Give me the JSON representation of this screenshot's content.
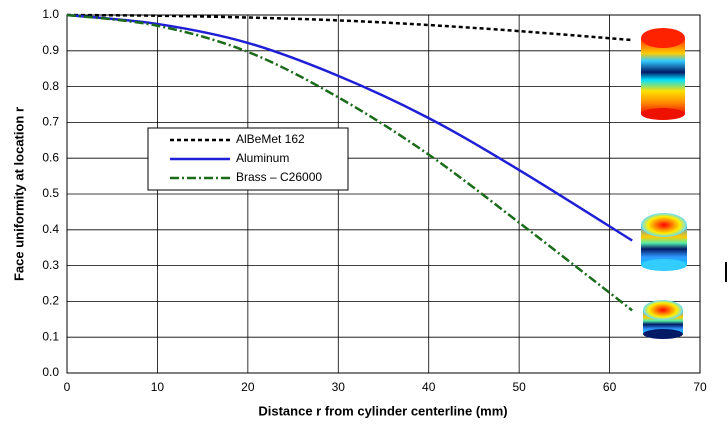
{
  "chart_data": {
    "type": "line",
    "x_label": "Distance r from cylinder centerline (mm)",
    "y_label": "Face uniformity at location r",
    "x": [
      0,
      10,
      20,
      30,
      40,
      50,
      62.5
    ],
    "series": [
      {
        "name": "AlBeMet 162",
        "color": "#000000",
        "linestyle": "dashed",
        "values": [
          1.0,
          0.998,
          0.993,
          0.985,
          0.972,
          0.955,
          0.93
        ]
      },
      {
        "name": "Aluminum",
        "color": "#1f1fd6",
        "linestyle": "solid",
        "values": [
          1.0,
          0.975,
          0.922,
          0.83,
          0.712,
          0.567,
          0.37
        ]
      },
      {
        "name": "Brass – C26000",
        "color": "#1a6b1a",
        "linestyle": "dashdot",
        "values": [
          1.0,
          0.97,
          0.897,
          0.77,
          0.61,
          0.42,
          0.175
        ]
      }
    ],
    "xlim": [
      0,
      70
    ],
    "xticks": [
      0,
      10,
      20,
      30,
      40,
      50,
      60,
      70
    ],
    "ylim": [
      0,
      1
    ],
    "yticks": [
      {
        "value": 0,
        "label": "0.0"
      },
      0.1,
      0.2,
      0.3,
      0.4,
      0.5,
      0.6,
      0.7,
      0.8,
      0.9,
      {
        "value": 1,
        "label": "1.0"
      }
    ],
    "grid": true
  }
}
